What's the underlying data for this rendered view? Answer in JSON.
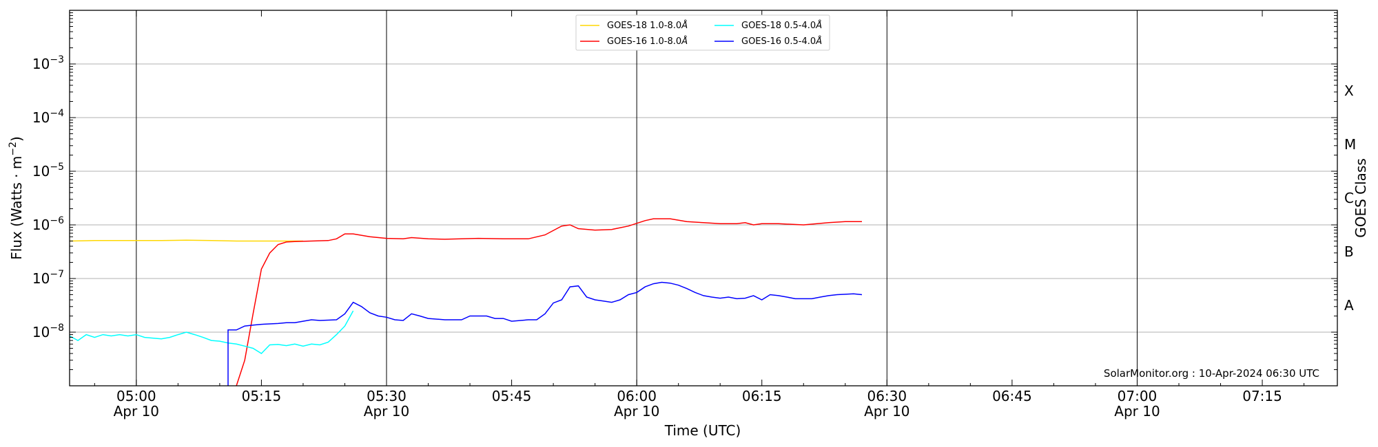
{
  "chart_data": {
    "type": "line",
    "title": "",
    "xlabel": "Time (UTC)",
    "ylabel": "Flux (Watts · m",
    "ylabel_sup": "−2",
    "ylabel_close": ")",
    "y2label": "GOES Class",
    "yscale": "log",
    "ylim": [
      1e-09,
      0.01
    ],
    "xlim": [
      "04:52",
      "07:24"
    ],
    "grid": "horizontal at decades",
    "legend_position": "top-center",
    "x_ticks": [
      {
        "t": "05:00",
        "line1": "05:00",
        "line2": "Apr 10"
      },
      {
        "t": "05:15",
        "line1": "05:15",
        "line2": ""
      },
      {
        "t": "05:30",
        "line1": "05:30",
        "line2": "Apr 10"
      },
      {
        "t": "05:45",
        "line1": "05:45",
        "line2": ""
      },
      {
        "t": "06:00",
        "line1": "06:00",
        "line2": "Apr 10"
      },
      {
        "t": "06:15",
        "line1": "06:15",
        "line2": ""
      },
      {
        "t": "06:30",
        "line1": "06:30",
        "line2": "Apr 10"
      },
      {
        "t": "06:45",
        "line1": "06:45",
        "line2": ""
      },
      {
        "t": "07:00",
        "line1": "07:00",
        "line2": "Apr 10"
      },
      {
        "t": "07:15",
        "line1": "07:15",
        "line2": ""
      }
    ],
    "vertical_lines": [
      "05:00",
      "05:30",
      "06:00",
      "06:30",
      "07:00"
    ],
    "y_ticks": [
      {
        "exp": -8,
        "label": "10",
        "sup": "−8"
      },
      {
        "exp": -7,
        "label": "10",
        "sup": "−7"
      },
      {
        "exp": -6,
        "label": "10",
        "sup": "−6"
      },
      {
        "exp": -5,
        "label": "10",
        "sup": "−5"
      },
      {
        "exp": -4,
        "label": "10",
        "sup": "−4"
      },
      {
        "exp": -3,
        "label": "10",
        "sup": "−3"
      }
    ],
    "goes_classes": [
      {
        "label": "A",
        "exp": -7.5
      },
      {
        "label": "B",
        "exp": -6.5
      },
      {
        "label": "C",
        "exp": -5.5
      },
      {
        "label": "M",
        "exp": -4.5
      },
      {
        "label": "X",
        "exp": -3.5
      }
    ],
    "series": [
      {
        "name": "GOES-18 1.0-8.0",
        "color": "#ffd700",
        "points": [
          [
            "04:52",
            5e-07
          ],
          [
            "04:55",
            5.1e-07
          ],
          [
            "04:58",
            5.1e-07
          ],
          [
            "05:00",
            5.1e-07
          ],
          [
            "05:03",
            5.1e-07
          ],
          [
            "05:06",
            5.2e-07
          ],
          [
            "05:09",
            5.1e-07
          ],
          [
            "05:12",
            5e-07
          ],
          [
            "05:15",
            5e-07
          ],
          [
            "05:18",
            5e-07
          ],
          [
            "05:20",
            5e-07
          ]
        ]
      },
      {
        "name": "GOES-16 1.0-8.0",
        "color": "#ff0000",
        "points": [
          [
            "05:12",
            1e-09
          ],
          [
            "05:13",
            3e-09
          ],
          [
            "05:14",
            2.2e-08
          ],
          [
            "05:15",
            1.5e-07
          ],
          [
            "05:16",
            3e-07
          ],
          [
            "05:17",
            4.3e-07
          ],
          [
            "05:18",
            4.8e-07
          ],
          [
            "05:19",
            4.9e-07
          ],
          [
            "05:21",
            5e-07
          ],
          [
            "05:23",
            5.1e-07
          ],
          [
            "05:24",
            5.5e-07
          ],
          [
            "05:25",
            6.8e-07
          ],
          [
            "05:26",
            6.8e-07
          ],
          [
            "05:28",
            6e-07
          ],
          [
            "05:30",
            5.6e-07
          ],
          [
            "05:32",
            5.5e-07
          ],
          [
            "05:33",
            5.8e-07
          ],
          [
            "05:35",
            5.5e-07
          ],
          [
            "05:37",
            5.4e-07
          ],
          [
            "05:39",
            5.5e-07
          ],
          [
            "05:41",
            5.6e-07
          ],
          [
            "05:44",
            5.5e-07
          ],
          [
            "05:47",
            5.5e-07
          ],
          [
            "05:49",
            6.5e-07
          ],
          [
            "05:51",
            9.5e-07
          ],
          [
            "05:52",
            1e-06
          ],
          [
            "05:53",
            8.5e-07
          ],
          [
            "05:55",
            8e-07
          ],
          [
            "05:57",
            8.2e-07
          ],
          [
            "05:59",
            9.5e-07
          ],
          [
            "06:01",
            1.2e-06
          ],
          [
            "06:02",
            1.3e-06
          ],
          [
            "06:04",
            1.3e-06
          ],
          [
            "06:06",
            1.15e-06
          ],
          [
            "06:08",
            1.1e-06
          ],
          [
            "06:10",
            1.05e-06
          ],
          [
            "06:12",
            1.05e-06
          ],
          [
            "06:13",
            1.1e-06
          ],
          [
            "06:14",
            1e-06
          ],
          [
            "06:15",
            1.05e-06
          ],
          [
            "06:17",
            1.05e-06
          ],
          [
            "06:20",
            1e-06
          ],
          [
            "06:23",
            1.1e-06
          ],
          [
            "06:25",
            1.15e-06
          ],
          [
            "06:27",
            1.15e-06
          ]
        ]
      },
      {
        "name": "GOES-18 0.5-4.0",
        "color": "#00ffff",
        "points": [
          [
            "04:52",
            8.5e-09
          ],
          [
            "04:53",
            7e-09
          ],
          [
            "04:54",
            9e-09
          ],
          [
            "04:55",
            8e-09
          ],
          [
            "04:56",
            9e-09
          ],
          [
            "04:57",
            8.5e-09
          ],
          [
            "04:58",
            9e-09
          ],
          [
            "04:59",
            8.5e-09
          ],
          [
            "05:00",
            9e-09
          ],
          [
            "05:01",
            8e-09
          ],
          [
            "05:03",
            7.5e-09
          ],
          [
            "05:04",
            8e-09
          ],
          [
            "05:05",
            9e-09
          ],
          [
            "05:06",
            1e-08
          ],
          [
            "05:07",
            9e-09
          ],
          [
            "05:08",
            8e-09
          ],
          [
            "05:09",
            7e-09
          ],
          [
            "05:10",
            6.8e-09
          ],
          [
            "05:11",
            6.3e-09
          ],
          [
            "05:12",
            6e-09
          ],
          [
            "05:13",
            5.5e-09
          ],
          [
            "05:14",
            5e-09
          ],
          [
            "05:15",
            4e-09
          ],
          [
            "05:16",
            5.8e-09
          ],
          [
            "05:17",
            5.9e-09
          ],
          [
            "05:18",
            5.6e-09
          ],
          [
            "05:19",
            6e-09
          ],
          [
            "05:20",
            5.5e-09
          ],
          [
            "05:21",
            6e-09
          ],
          [
            "05:22",
            5.8e-09
          ],
          [
            "05:23",
            6.5e-09
          ],
          [
            "05:24",
            9e-09
          ],
          [
            "05:25",
            1.3e-08
          ],
          [
            "05:26",
            2.5e-08
          ]
        ]
      },
      {
        "name": "GOES-16 0.5-4.0",
        "color": "#0000ff",
        "points": [
          [
            "05:11",
            1e-09
          ],
          [
            "05:11",
            1.1e-08
          ],
          [
            "05:12",
            1.1e-08
          ],
          [
            "05:13",
            1.3e-08
          ],
          [
            "05:14",
            1.35e-08
          ],
          [
            "05:15",
            1.4e-08
          ],
          [
            "05:17",
            1.45e-08
          ],
          [
            "05:18",
            1.5e-08
          ],
          [
            "05:19",
            1.5e-08
          ],
          [
            "05:20",
            1.6e-08
          ],
          [
            "05:21",
            1.7e-08
          ],
          [
            "05:22",
            1.65e-08
          ],
          [
            "05:24",
            1.7e-08
          ],
          [
            "05:25",
            2.2e-08
          ],
          [
            "05:26",
            3.6e-08
          ],
          [
            "05:27",
            3e-08
          ],
          [
            "05:28",
            2.3e-08
          ],
          [
            "05:29",
            2e-08
          ],
          [
            "05:30",
            1.9e-08
          ],
          [
            "05:31",
            1.7e-08
          ],
          [
            "05:32",
            1.65e-08
          ],
          [
            "05:33",
            2.2e-08
          ],
          [
            "05:34",
            2e-08
          ],
          [
            "05:35",
            1.8e-08
          ],
          [
            "05:37",
            1.7e-08
          ],
          [
            "05:39",
            1.7e-08
          ],
          [
            "05:40",
            2e-08
          ],
          [
            "05:42",
            2e-08
          ],
          [
            "05:43",
            1.8e-08
          ],
          [
            "05:44",
            1.8e-08
          ],
          [
            "05:45",
            1.6e-08
          ],
          [
            "05:47",
            1.7e-08
          ],
          [
            "05:48",
            1.7e-08
          ],
          [
            "05:49",
            2.2e-08
          ],
          [
            "05:50",
            3.5e-08
          ],
          [
            "05:51",
            4e-08
          ],
          [
            "05:52",
            7e-08
          ],
          [
            "05:53",
            7.3e-08
          ],
          [
            "05:54",
            4.5e-08
          ],
          [
            "05:55",
            4e-08
          ],
          [
            "05:56",
            3.8e-08
          ],
          [
            "05:57",
            3.6e-08
          ],
          [
            "05:58",
            4e-08
          ],
          [
            "05:59",
            5e-08
          ],
          [
            "06:00",
            5.5e-08
          ],
          [
            "06:01",
            7e-08
          ],
          [
            "06:02",
            8e-08
          ],
          [
            "06:03",
            8.5e-08
          ],
          [
            "06:04",
            8.2e-08
          ],
          [
            "06:05",
            7.5e-08
          ],
          [
            "06:06",
            6.5e-08
          ],
          [
            "06:07",
            5.5e-08
          ],
          [
            "06:08",
            4.8e-08
          ],
          [
            "06:09",
            4.5e-08
          ],
          [
            "06:10",
            4.3e-08
          ],
          [
            "06:11",
            4.5e-08
          ],
          [
            "06:12",
            4.2e-08
          ],
          [
            "06:13",
            4.3e-08
          ],
          [
            "06:14",
            4.8e-08
          ],
          [
            "06:15",
            4e-08
          ],
          [
            "06:16",
            5e-08
          ],
          [
            "06:17",
            4.8e-08
          ],
          [
            "06:18",
            4.5e-08
          ],
          [
            "06:19",
            4.2e-08
          ],
          [
            "06:21",
            4.2e-08
          ],
          [
            "06:22",
            4.5e-08
          ],
          [
            "06:23",
            4.8e-08
          ],
          [
            "06:24",
            5e-08
          ],
          [
            "06:26",
            5.2e-08
          ],
          [
            "06:27",
            5e-08
          ]
        ]
      }
    ]
  },
  "legend": {
    "items": [
      {
        "label": "GOES-18 1.0-8.0",
        "unit": "Å",
        "color": "#ffd700"
      },
      {
        "label": "GOES-18 0.5-4.0",
        "unit": "Å",
        "color": "#00ffff"
      },
      {
        "label": "GOES-16 1.0-8.0",
        "unit": "Å",
        "color": "#ff0000"
      },
      {
        "label": "GOES-16 0.5-4.0",
        "unit": "Å",
        "color": "#0000ff"
      }
    ]
  },
  "credit": "SolarMonitor.org : 10-Apr-2024 06:30 UTC"
}
